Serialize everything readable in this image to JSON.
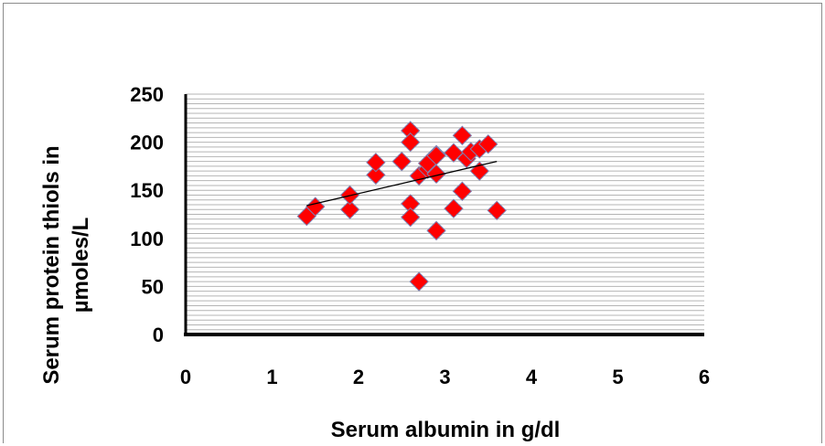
{
  "chart_data": {
    "type": "scatter",
    "xlabel": "Serum albumin in g/dl",
    "ylabel_lines": [
      "Serum protein thiols in",
      "µmoles/L"
    ],
    "xlim": [
      0,
      6
    ],
    "ylim": [
      0,
      250
    ],
    "x_ticks": [
      "0",
      "1",
      "2",
      "3",
      "4",
      "5",
      "6"
    ],
    "y_ticks": [
      "0",
      "50",
      "100",
      "150",
      "200",
      "250"
    ],
    "y_minor_step": 5,
    "grid": "horizontal",
    "legend": "none",
    "marker": "diamond",
    "colors": {
      "marker_fill": "#ff0000",
      "marker_stroke": "#7f7fb0",
      "grid": "#b4b4b4",
      "trendline": "#000000",
      "axis": "#000000"
    },
    "series": [
      {
        "x": [
          1.4,
          1.5,
          1.9,
          1.9,
          2.2,
          2.2,
          2.5,
          2.6,
          2.6,
          2.6,
          2.6,
          2.7,
          2.7,
          2.8,
          2.8,
          2.9,
          2.9,
          2.9,
          2.9,
          3.1,
          3.1,
          3.2,
          3.2,
          3.25,
          3.3,
          3.4,
          3.4,
          3.5,
          3.6
        ],
        "y": [
          123,
          133,
          130,
          145,
          166,
          179,
          180,
          212,
          200,
          136,
          122,
          55,
          165,
          172,
          178,
          187,
          167,
          108,
          186,
          131,
          189,
          207,
          149,
          183,
          190,
          170,
          193,
          198,
          129
        ]
      }
    ],
    "trendline": {
      "x": [
        1.4,
        3.6
      ],
      "y": [
        134,
        180
      ]
    }
  }
}
